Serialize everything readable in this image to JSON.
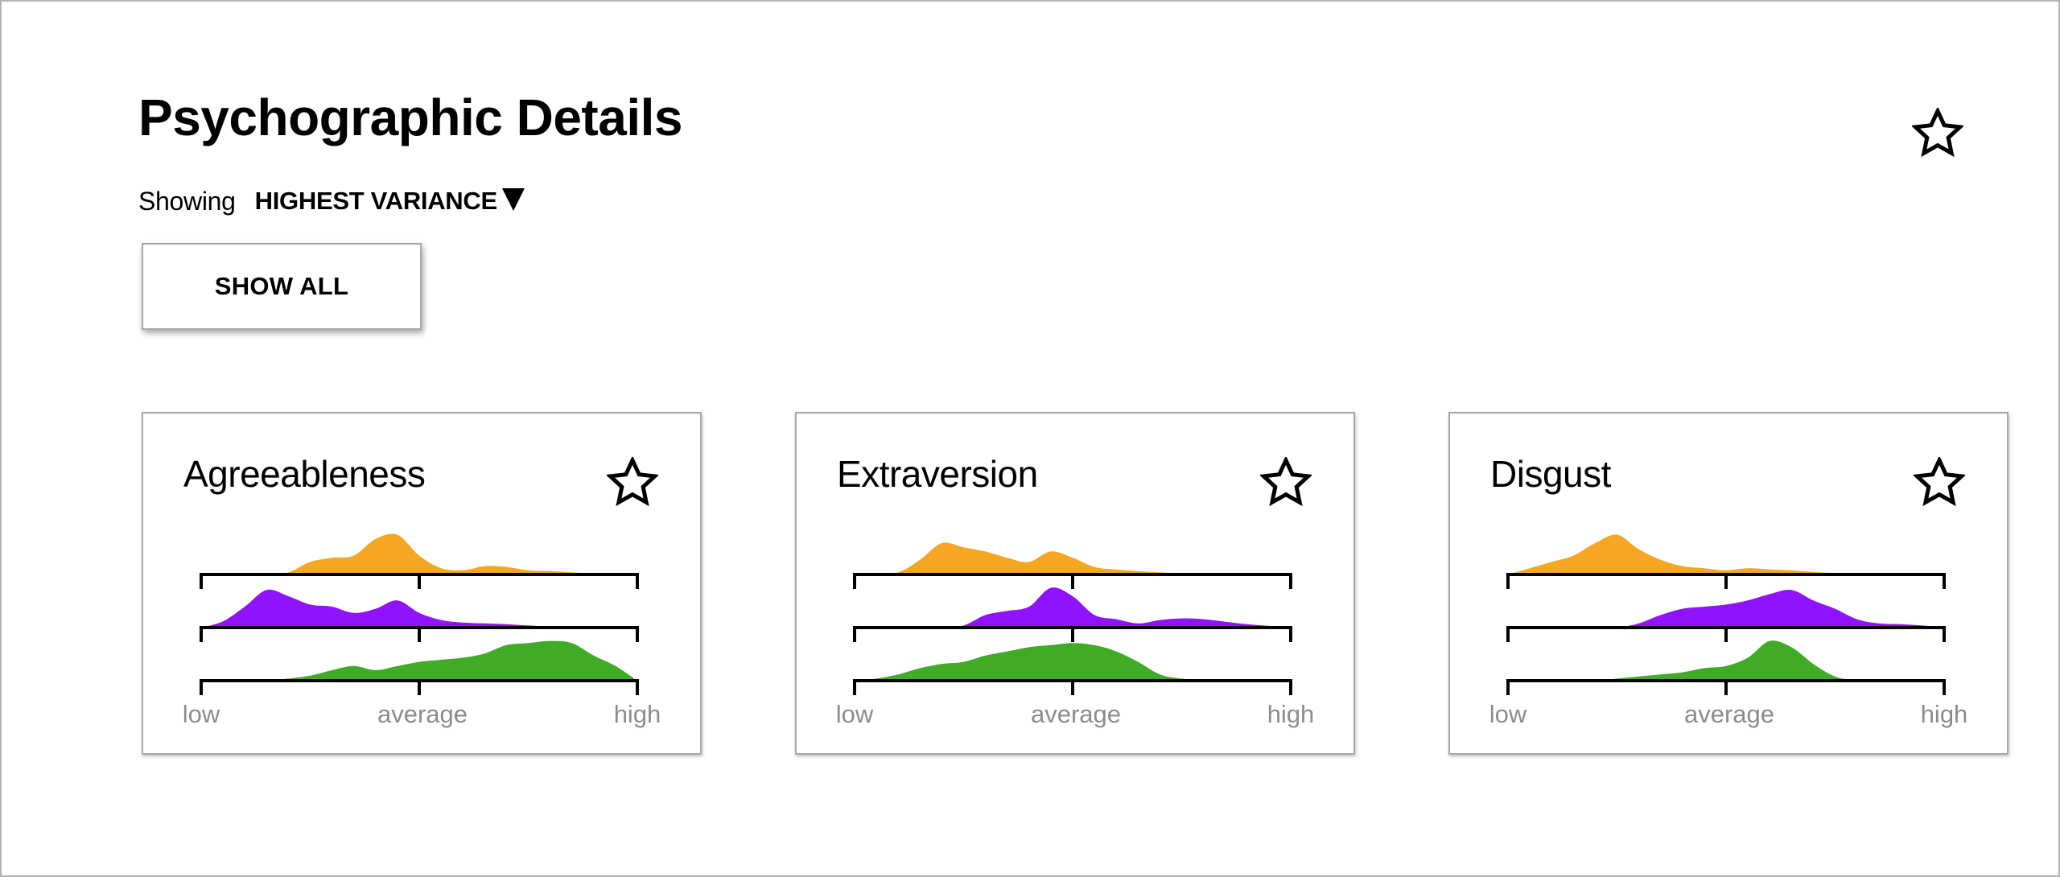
{
  "header": {
    "title": "Psychographic Details",
    "star_icon": "star-outline-icon"
  },
  "filter": {
    "showing_label": "Showing",
    "selected": "HIGHEST VARIANCE",
    "caret_icon": "caret-down-icon"
  },
  "show_all_label": "SHOW ALL",
  "series_colors": [
    "#f5a623",
    "#9013fe",
    "#3fab26"
  ],
  "axis_labels": {
    "low": "low",
    "average": "average",
    "high": "high"
  },
  "cards": [
    {
      "title": "Agreeableness",
      "star_icon": "star-outline-icon"
    },
    {
      "title": "Extraversion",
      "star_icon": "star-outline-icon"
    },
    {
      "title": "Disgust",
      "star_icon": "star-outline-icon"
    }
  ],
  "chart_data": [
    {
      "type": "area",
      "title": "Agreeableness",
      "x": [
        0,
        0.05,
        0.1,
        0.15,
        0.2,
        0.25,
        0.3,
        0.35,
        0.4,
        0.45,
        0.5,
        0.55,
        0.6,
        0.65,
        0.7,
        0.75,
        0.8,
        0.85,
        0.9,
        0.95,
        1
      ],
      "xticklabels": [
        "low",
        "average",
        "high"
      ],
      "series": [
        {
          "color": "#f5a623",
          "values": [
            0,
            0,
            0,
            0,
            0.05,
            0.3,
            0.4,
            0.45,
            0.85,
            0.95,
            0.45,
            0.15,
            0.1,
            0.2,
            0.18,
            0.1,
            0.08,
            0.05,
            0.02,
            0,
            0
          ]
        },
        {
          "color": "#9013fe",
          "values": [
            0,
            0.15,
            0.5,
            0.9,
            0.75,
            0.55,
            0.5,
            0.35,
            0.45,
            0.65,
            0.35,
            0.18,
            0.12,
            0.1,
            0.08,
            0.05,
            0.02,
            0,
            0,
            0,
            0
          ]
        },
        {
          "color": "#3fab26",
          "values": [
            0,
            0,
            0,
            0,
            0.05,
            0.12,
            0.25,
            0.35,
            0.25,
            0.35,
            0.45,
            0.5,
            0.55,
            0.65,
            0.85,
            0.9,
            0.95,
            0.9,
            0.6,
            0.35,
            0
          ]
        }
      ]
    },
    {
      "type": "area",
      "title": "Extraversion",
      "x": [
        0,
        0.05,
        0.1,
        0.15,
        0.2,
        0.25,
        0.3,
        0.35,
        0.4,
        0.45,
        0.5,
        0.55,
        0.6,
        0.65,
        0.7,
        0.75,
        0.8,
        0.85,
        0.9,
        0.95,
        1
      ],
      "xticklabels": [
        "low",
        "average",
        "high"
      ],
      "series": [
        {
          "color": "#f5a623",
          "values": [
            0,
            0,
            0.05,
            0.35,
            0.75,
            0.65,
            0.55,
            0.4,
            0.3,
            0.55,
            0.4,
            0.18,
            0.12,
            0.08,
            0.05,
            0.02,
            0.01,
            0,
            0,
            0,
            0
          ]
        },
        {
          "color": "#9013fe",
          "values": [
            0,
            0,
            0,
            0,
            0,
            0.05,
            0.3,
            0.4,
            0.5,
            0.95,
            0.75,
            0.3,
            0.2,
            0.1,
            0.18,
            0.22,
            0.2,
            0.14,
            0.08,
            0.04,
            0
          ]
        },
        {
          "color": "#3fab26",
          "values": [
            0,
            0.05,
            0.15,
            0.3,
            0.4,
            0.45,
            0.6,
            0.7,
            0.8,
            0.85,
            0.9,
            0.85,
            0.7,
            0.45,
            0.15,
            0.05,
            0,
            0,
            0,
            0,
            0
          ]
        }
      ]
    },
    {
      "type": "area",
      "title": "Disgust",
      "x": [
        0,
        0.05,
        0.1,
        0.15,
        0.2,
        0.25,
        0.3,
        0.35,
        0.4,
        0.45,
        0.5,
        0.55,
        0.6,
        0.65,
        0.7,
        0.75,
        0.8,
        0.85,
        0.9,
        0.95,
        1
      ],
      "xticklabels": [
        "low",
        "average",
        "high"
      ],
      "series": [
        {
          "color": "#f5a623",
          "values": [
            0,
            0.15,
            0.3,
            0.45,
            0.75,
            0.95,
            0.6,
            0.35,
            0.2,
            0.15,
            0.1,
            0.15,
            0.12,
            0.1,
            0.06,
            0.03,
            0,
            0,
            0,
            0,
            0
          ]
        },
        {
          "color": "#9013fe",
          "values": [
            0,
            0,
            0,
            0,
            0,
            0,
            0.1,
            0.3,
            0.45,
            0.5,
            0.55,
            0.65,
            0.8,
            0.9,
            0.65,
            0.45,
            0.2,
            0.1,
            0.08,
            0.05,
            0
          ]
        },
        {
          "color": "#3fab26",
          "values": [
            0,
            0,
            0,
            0,
            0,
            0.05,
            0.1,
            0.15,
            0.2,
            0.3,
            0.35,
            0.55,
            0.95,
            0.8,
            0.4,
            0.1,
            0,
            0,
            0,
            0,
            0
          ]
        }
      ]
    }
  ]
}
